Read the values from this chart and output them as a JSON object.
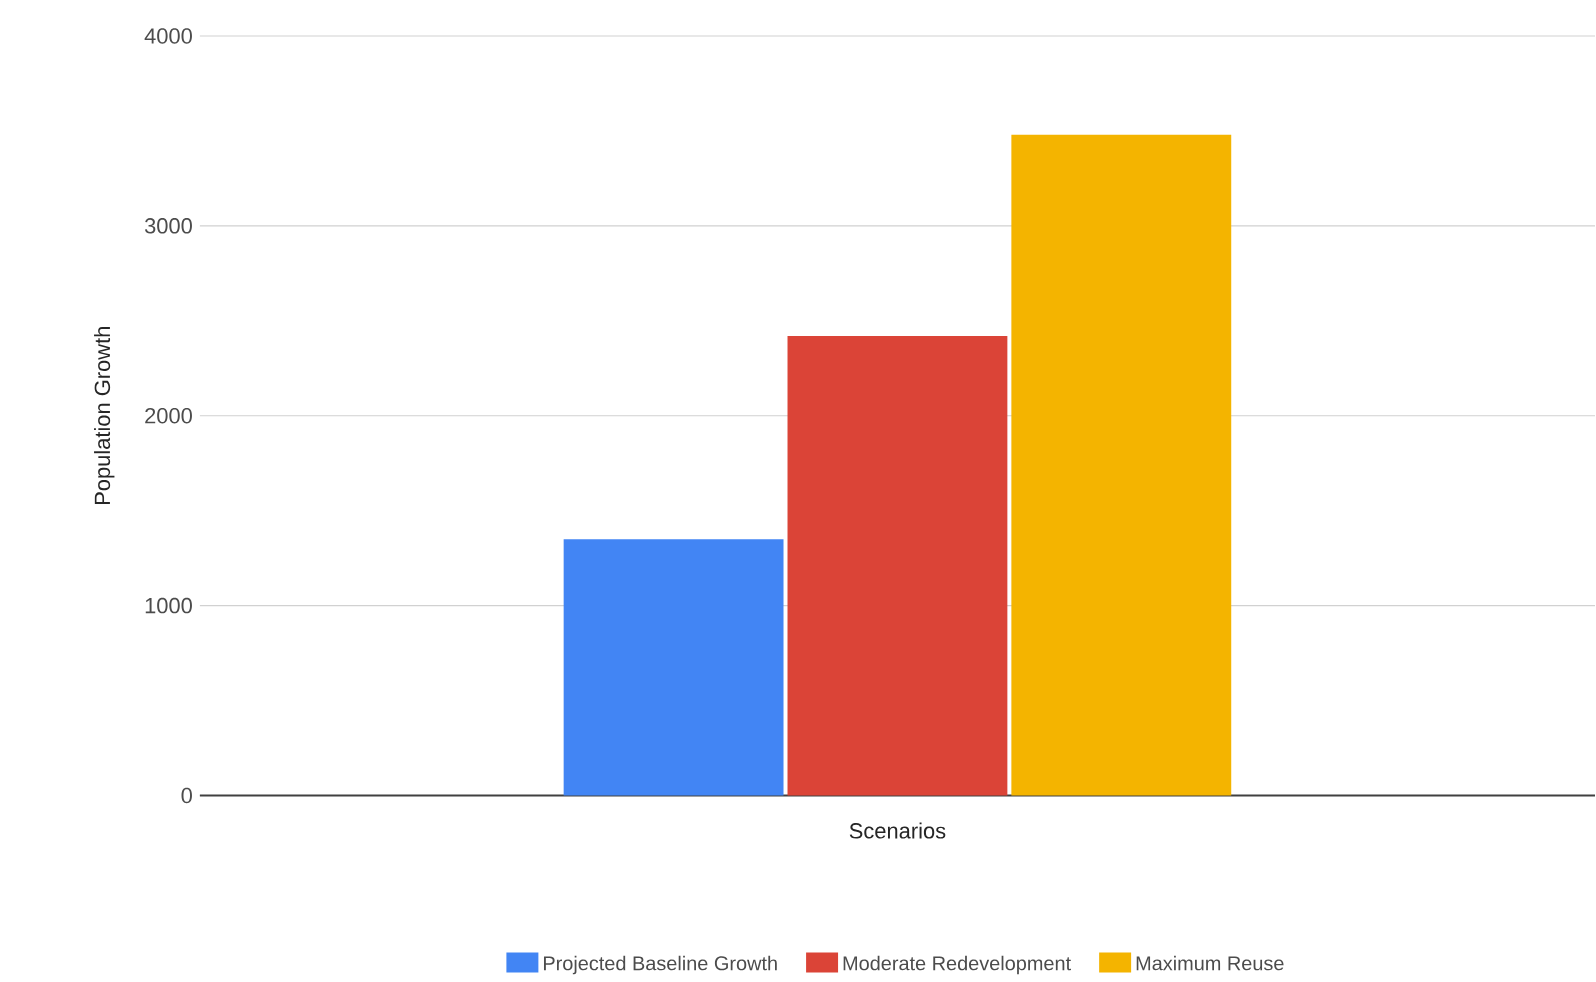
{
  "chart_data": {
    "type": "bar",
    "xlabel": "Scenarios",
    "ylabel": "Population Growth",
    "categories": [
      null
    ],
    "series": [
      {
        "name": "Projected Baseline Growth",
        "color": "#4285f4",
        "values": [
          1350
        ]
      },
      {
        "name": "Moderate Redevelopment",
        "color": "#db4437",
        "values": [
          2420
        ]
      },
      {
        "name": "Maximum Reuse",
        "color": "#f4b400",
        "values": [
          3480
        ]
      }
    ],
    "ylim": [
      0,
      4000
    ],
    "yticks": [
      0,
      1000,
      2000,
      3000,
      4000
    ],
    "grid": "y",
    "legend": "bottom"
  }
}
